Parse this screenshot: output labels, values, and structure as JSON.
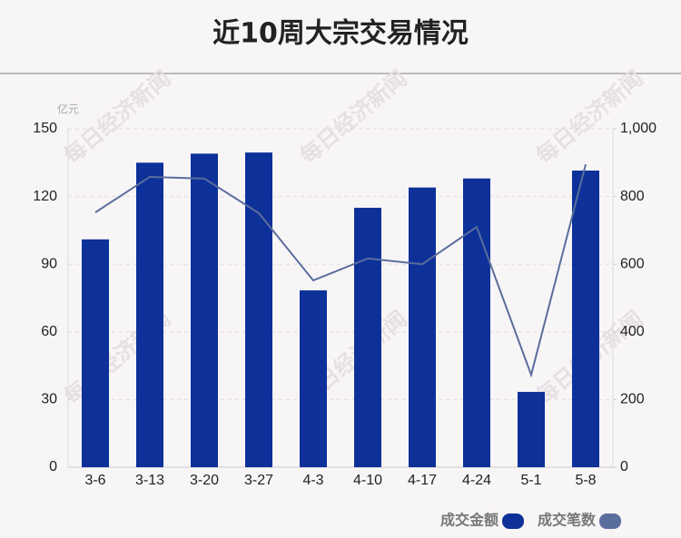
{
  "chart_data": {
    "type": "bar-line",
    "title": "近10周大宗交易情况",
    "y_unit": "亿元",
    "watermark": "每日经济新闻",
    "categories": [
      "3-6",
      "3-13",
      "3-20",
      "3-27",
      "4-3",
      "4-10",
      "4-17",
      "4-24",
      "5-1",
      "5-8"
    ],
    "series": [
      {
        "name": "成交金额",
        "color": "#0d3199",
        "type": "bar",
        "values": [
          101,
          135,
          139,
          139.5,
          78.4,
          115,
          124,
          128,
          33.4,
          131.5
        ]
      },
      {
        "name": "成交笔数",
        "color": "#5a6e9c",
        "type": "line",
        "axis": "y2",
        "values": [
          753,
          858,
          853,
          751,
          552,
          617,
          600,
          710,
          273,
          895
        ]
      }
    ],
    "ylim": [
      0,
      150
    ],
    "yticks": [
      0,
      30,
      60,
      90,
      120,
      150
    ],
    "y2lim": [
      0,
      1000
    ],
    "y2ticks": [
      0,
      200,
      400,
      600,
      800,
      {
        "value": 1000,
        "label": "1,000"
      }
    ],
    "grid": true,
    "legend": "bottom-right"
  }
}
